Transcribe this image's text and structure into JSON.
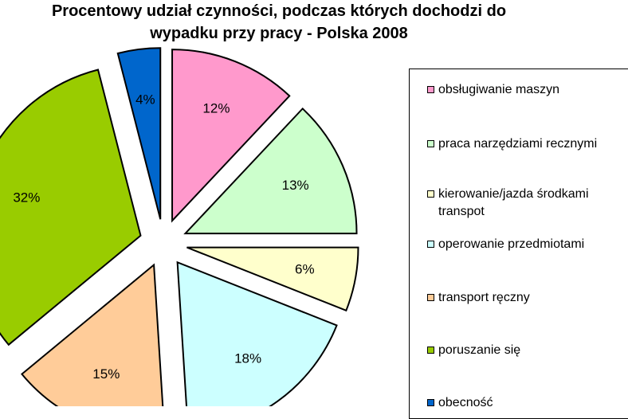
{
  "title_line1": "Procentowy udział czynności, podczas których dochodzi do",
  "title_line2": "wypadku przy pracy - Polska 2008",
  "chart_data": {
    "type": "pie",
    "title": "Procentowy udział czynności, podczas których dochodzi do wypadku przy pracy - Polska 2008",
    "legend_position": "right",
    "slices": [
      {
        "label": "obsługiwanie maszyn",
        "value": 12,
        "display": "12%",
        "color": "#ff99cc"
      },
      {
        "label": "praca narzędziami recznymi",
        "value": 13,
        "display": "13%",
        "color": "#ccffcc"
      },
      {
        "label": "kierowanie/jazda środkami transpot",
        "value": 6,
        "display": "6%",
        "color": "#ffffcc"
      },
      {
        "label": "operowanie przedmiotami",
        "value": 18,
        "display": "18%",
        "color": "#ccffff"
      },
      {
        "label": "transport ręczny",
        "value": 15,
        "display": "15%",
        "color": "#ffcc99"
      },
      {
        "label": "poruszanie się",
        "value": 32,
        "display": "32%",
        "color": "#99cc00"
      },
      {
        "label": "obecność",
        "value": 4,
        "display": "4%",
        "color": "#0066cc"
      }
    ]
  }
}
